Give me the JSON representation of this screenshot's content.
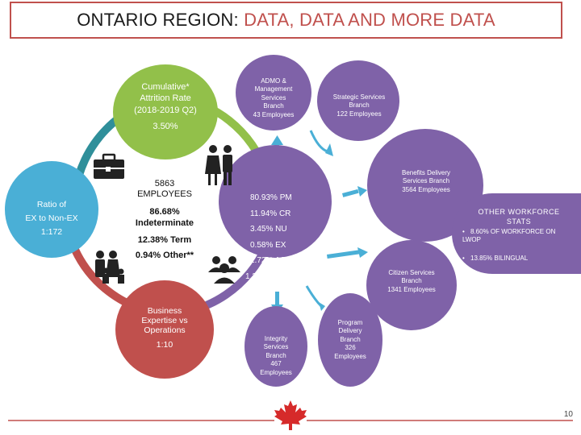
{
  "title": {
    "main": "ONTARIO REGION:",
    "accent": "DATA, DATA AND MORE DATA"
  },
  "attrition": {
    "line1": "Cumulative*",
    "line2": "Attrition Rate",
    "line3": "(2018-2019 Q2)",
    "value": "3.50%"
  },
  "ratio": {
    "line1": "Ratio of",
    "line2": "EX to Non-EX",
    "value": "1:172"
  },
  "business": {
    "line1": "Business",
    "line2": "Expertise vs",
    "line3": "Operations",
    "value": "1:10"
  },
  "center": {
    "employees": "5863",
    "employees_label": "EMPLOYEES",
    "indeterminate": "86.68%",
    "indeterminate_label": "Indeterminate",
    "term": "12.38% Term",
    "other": "0.94% Other**"
  },
  "groups": [
    "80.93% PM",
    "11.94% CR",
    "3.45% NU",
    "0.58% EX",
    "1.72% AS",
    "1.38% EC/IS"
  ],
  "branches": {
    "admo": [
      "ADMO &",
      "Management",
      "Services",
      "Branch",
      "43 Employees"
    ],
    "strategic": [
      "Strategic Services",
      "Branch",
      "122 Employees"
    ],
    "benefits": [
      "Benefits Delivery",
      "Services Branch",
      "3564 Employees"
    ],
    "citizen": [
      "Citizen Services",
      "Branch",
      "1341 Employees"
    ],
    "program": [
      "Program",
      "Delivery",
      "Branch",
      "326",
      "Employees"
    ],
    "integrity": [
      "Integrity",
      "Services",
      "Branch",
      "467",
      "Employees"
    ]
  },
  "workforce": {
    "heading": "OTHER WORKFORCE STATS",
    "items": [
      "8.60% OF WORKFORCE ON LWOP",
      "13.85% BILINGUAL"
    ]
  },
  "page_number": "10",
  "icons": [
    "briefcase-icon",
    "couple-icon",
    "family-icon",
    "users-icon",
    "maple-leaf-icon",
    "arrow-icon"
  ],
  "colors": {
    "green": "#92c04a",
    "blue": "#4aafd6",
    "red": "#c0504d",
    "purple": "#7f62a8",
    "teal": "#2f8f9a"
  }
}
